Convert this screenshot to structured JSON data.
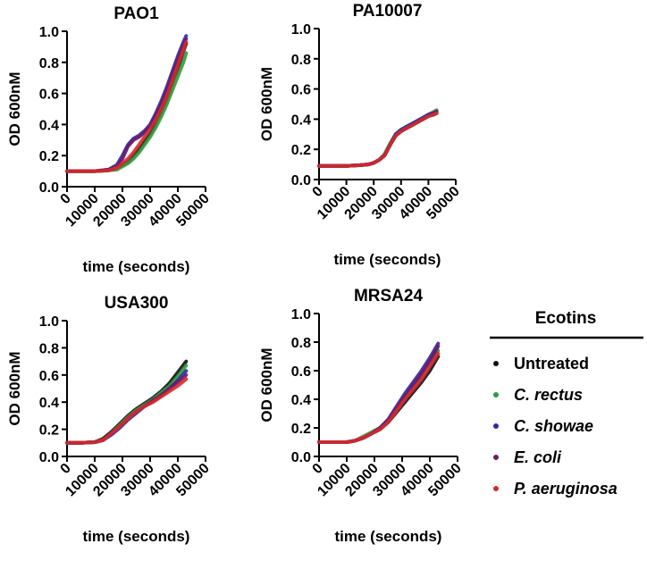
{
  "legend": {
    "title": "Ecotins",
    "items": [
      {
        "label": "Untreated",
        "color": "#111111",
        "italic": false
      },
      {
        "label": "C. rectus",
        "color": "#2e9b3a",
        "italic": true
      },
      {
        "label": "C. showae",
        "color": "#2b2ba8",
        "italic": true
      },
      {
        "label": "E. coli",
        "color": "#6b1a6b",
        "italic": true
      },
      {
        "label": "P. aeruginosa",
        "color": "#d42a2a",
        "italic": true
      }
    ]
  },
  "chart_data": [
    {
      "type": "line",
      "title": "PAO1",
      "xlabel": "time (seconds)",
      "ylabel": "OD 600nM",
      "xlim": [
        0,
        50000
      ],
      "ylim": [
        0,
        1.0
      ],
      "xticks": [
        "0",
        "10000",
        "20000",
        "30000",
        "40000",
        "50000"
      ],
      "yticks": [
        "0.0",
        "0.2",
        "0.4",
        "0.6",
        "0.8",
        "1.0"
      ],
      "x": [
        0,
        5000,
        10000,
        15000,
        18000,
        20000,
        22000,
        24000,
        26000,
        28000,
        30000,
        32000,
        34000,
        36000,
        38000,
        40000,
        42000,
        43000
      ],
      "series": [
        {
          "name": "Untreated",
          "values": [
            0.1,
            0.1,
            0.1,
            0.105,
            0.12,
            0.14,
            0.16,
            0.2,
            0.24,
            0.29,
            0.34,
            0.41,
            0.48,
            0.56,
            0.66,
            0.76,
            0.87,
            0.92
          ]
        },
        {
          "name": "C. rectus",
          "values": [
            0.1,
            0.1,
            0.1,
            0.105,
            0.11,
            0.13,
            0.15,
            0.18,
            0.22,
            0.27,
            0.32,
            0.38,
            0.45,
            0.53,
            0.62,
            0.71,
            0.8,
            0.86
          ]
        },
        {
          "name": "C. showae",
          "values": [
            0.1,
            0.1,
            0.1,
            0.11,
            0.14,
            0.2,
            0.27,
            0.31,
            0.33,
            0.36,
            0.4,
            0.47,
            0.55,
            0.64,
            0.74,
            0.84,
            0.93,
            0.97
          ]
        },
        {
          "name": "E. coli",
          "values": [
            0.1,
            0.1,
            0.1,
            0.11,
            0.13,
            0.18,
            0.26,
            0.3,
            0.32,
            0.35,
            0.39,
            0.46,
            0.53,
            0.62,
            0.72,
            0.82,
            0.91,
            0.95
          ]
        },
        {
          "name": "P. aeruginosa",
          "values": [
            0.1,
            0.1,
            0.1,
            0.105,
            0.12,
            0.15,
            0.18,
            0.22,
            0.27,
            0.32,
            0.37,
            0.43,
            0.5,
            0.58,
            0.68,
            0.78,
            0.88,
            0.93
          ]
        }
      ]
    },
    {
      "type": "line",
      "title": "PA10007",
      "xlabel": "time (seconds)",
      "ylabel": "OD 600nM",
      "xlim": [
        0,
        50000
      ],
      "ylim": [
        0,
        1.0
      ],
      "xticks": [
        "0",
        "10000",
        "20000",
        "30000",
        "40000",
        "50000"
      ],
      "yticks": [
        "0.0",
        "0.2",
        "0.4",
        "0.6",
        "0.8",
        "1.0"
      ],
      "x": [
        0,
        5000,
        10000,
        15000,
        18000,
        20000,
        22000,
        24000,
        26000,
        28000,
        30000,
        32000,
        34000,
        36000,
        38000,
        40000,
        42000,
        43000
      ],
      "series": [
        {
          "name": "Untreated",
          "values": [
            0.09,
            0.09,
            0.09,
            0.095,
            0.1,
            0.11,
            0.13,
            0.16,
            0.23,
            0.29,
            0.32,
            0.34,
            0.36,
            0.38,
            0.4,
            0.42,
            0.43,
            0.44
          ]
        },
        {
          "name": "C. rectus",
          "values": [
            0.09,
            0.09,
            0.09,
            0.095,
            0.1,
            0.11,
            0.13,
            0.17,
            0.24,
            0.3,
            0.33,
            0.35,
            0.37,
            0.39,
            0.41,
            0.43,
            0.45,
            0.46
          ]
        },
        {
          "name": "C. showae",
          "values": [
            0.09,
            0.09,
            0.09,
            0.095,
            0.1,
            0.11,
            0.13,
            0.16,
            0.23,
            0.3,
            0.33,
            0.35,
            0.37,
            0.39,
            0.41,
            0.43,
            0.44,
            0.45
          ]
        },
        {
          "name": "E. coli",
          "values": [
            0.09,
            0.09,
            0.09,
            0.095,
            0.1,
            0.11,
            0.13,
            0.16,
            0.23,
            0.29,
            0.32,
            0.34,
            0.36,
            0.38,
            0.4,
            0.42,
            0.44,
            0.45
          ]
        },
        {
          "name": "P. aeruginosa",
          "values": [
            0.09,
            0.09,
            0.09,
            0.095,
            0.1,
            0.11,
            0.13,
            0.16,
            0.23,
            0.29,
            0.32,
            0.34,
            0.36,
            0.38,
            0.4,
            0.42,
            0.43,
            0.44
          ]
        }
      ]
    },
    {
      "type": "line",
      "title": "USA300",
      "xlabel": "time (seconds)",
      "ylabel": "OD 600nM",
      "xlim": [
        0,
        50000
      ],
      "ylim": [
        0,
        1.0
      ],
      "xticks": [
        "0",
        "10000",
        "20000",
        "30000",
        "40000",
        "50000"
      ],
      "yticks": [
        "0.0",
        "0.2",
        "0.4",
        "0.6",
        "0.8",
        "1.0"
      ],
      "x": [
        0,
        5000,
        10000,
        13000,
        16000,
        19000,
        22000,
        25000,
        28000,
        31000,
        34000,
        37000,
        40000,
        43000
      ],
      "series": [
        {
          "name": "Untreated",
          "values": [
            0.1,
            0.1,
            0.105,
            0.13,
            0.18,
            0.24,
            0.3,
            0.35,
            0.39,
            0.43,
            0.48,
            0.54,
            0.62,
            0.7
          ]
        },
        {
          "name": "C. rectus",
          "values": [
            0.1,
            0.1,
            0.105,
            0.12,
            0.17,
            0.23,
            0.29,
            0.34,
            0.38,
            0.42,
            0.47,
            0.52,
            0.59,
            0.67
          ]
        },
        {
          "name": "C. showae",
          "values": [
            0.1,
            0.1,
            0.105,
            0.12,
            0.16,
            0.21,
            0.27,
            0.32,
            0.37,
            0.41,
            0.45,
            0.5,
            0.56,
            0.63
          ]
        },
        {
          "name": "E. coli",
          "values": [
            0.1,
            0.1,
            0.105,
            0.12,
            0.17,
            0.22,
            0.28,
            0.33,
            0.37,
            0.41,
            0.45,
            0.5,
            0.55,
            0.6
          ]
        },
        {
          "name": "P. aeruginosa",
          "values": [
            0.1,
            0.1,
            0.105,
            0.12,
            0.17,
            0.22,
            0.28,
            0.33,
            0.37,
            0.4,
            0.44,
            0.48,
            0.52,
            0.57
          ]
        }
      ]
    },
    {
      "type": "line",
      "title": "MRSA24",
      "xlabel": "time (seconds)",
      "ylabel": "OD 600nM",
      "xlim": [
        0,
        50000
      ],
      "ylim": [
        0,
        1.0
      ],
      "xticks": [
        "0",
        "10000",
        "20000",
        "30000",
        "40000",
        "50000"
      ],
      "yticks": [
        "0.0",
        "0.2",
        "0.4",
        "0.6",
        "0.8",
        "1.0"
      ],
      "x": [
        0,
        5000,
        10000,
        13000,
        16000,
        19000,
        22000,
        25000,
        28000,
        31000,
        34000,
        37000,
        40000,
        43000
      ],
      "series": [
        {
          "name": "Untreated",
          "values": [
            0.1,
            0.1,
            0.1,
            0.11,
            0.13,
            0.16,
            0.19,
            0.24,
            0.31,
            0.38,
            0.45,
            0.52,
            0.6,
            0.7
          ]
        },
        {
          "name": "C. rectus",
          "values": [
            0.1,
            0.1,
            0.1,
            0.11,
            0.14,
            0.17,
            0.2,
            0.25,
            0.33,
            0.41,
            0.49,
            0.57,
            0.66,
            0.74
          ]
        },
        {
          "name": "C. showae",
          "values": [
            0.1,
            0.1,
            0.1,
            0.11,
            0.13,
            0.16,
            0.2,
            0.26,
            0.35,
            0.44,
            0.52,
            0.6,
            0.69,
            0.79
          ]
        },
        {
          "name": "E. coli",
          "values": [
            0.1,
            0.1,
            0.1,
            0.11,
            0.13,
            0.16,
            0.2,
            0.25,
            0.34,
            0.42,
            0.5,
            0.58,
            0.67,
            0.77
          ]
        },
        {
          "name": "P. aeruginosa",
          "values": [
            0.1,
            0.1,
            0.1,
            0.11,
            0.13,
            0.16,
            0.19,
            0.24,
            0.32,
            0.4,
            0.47,
            0.54,
            0.63,
            0.72
          ]
        }
      ]
    }
  ]
}
